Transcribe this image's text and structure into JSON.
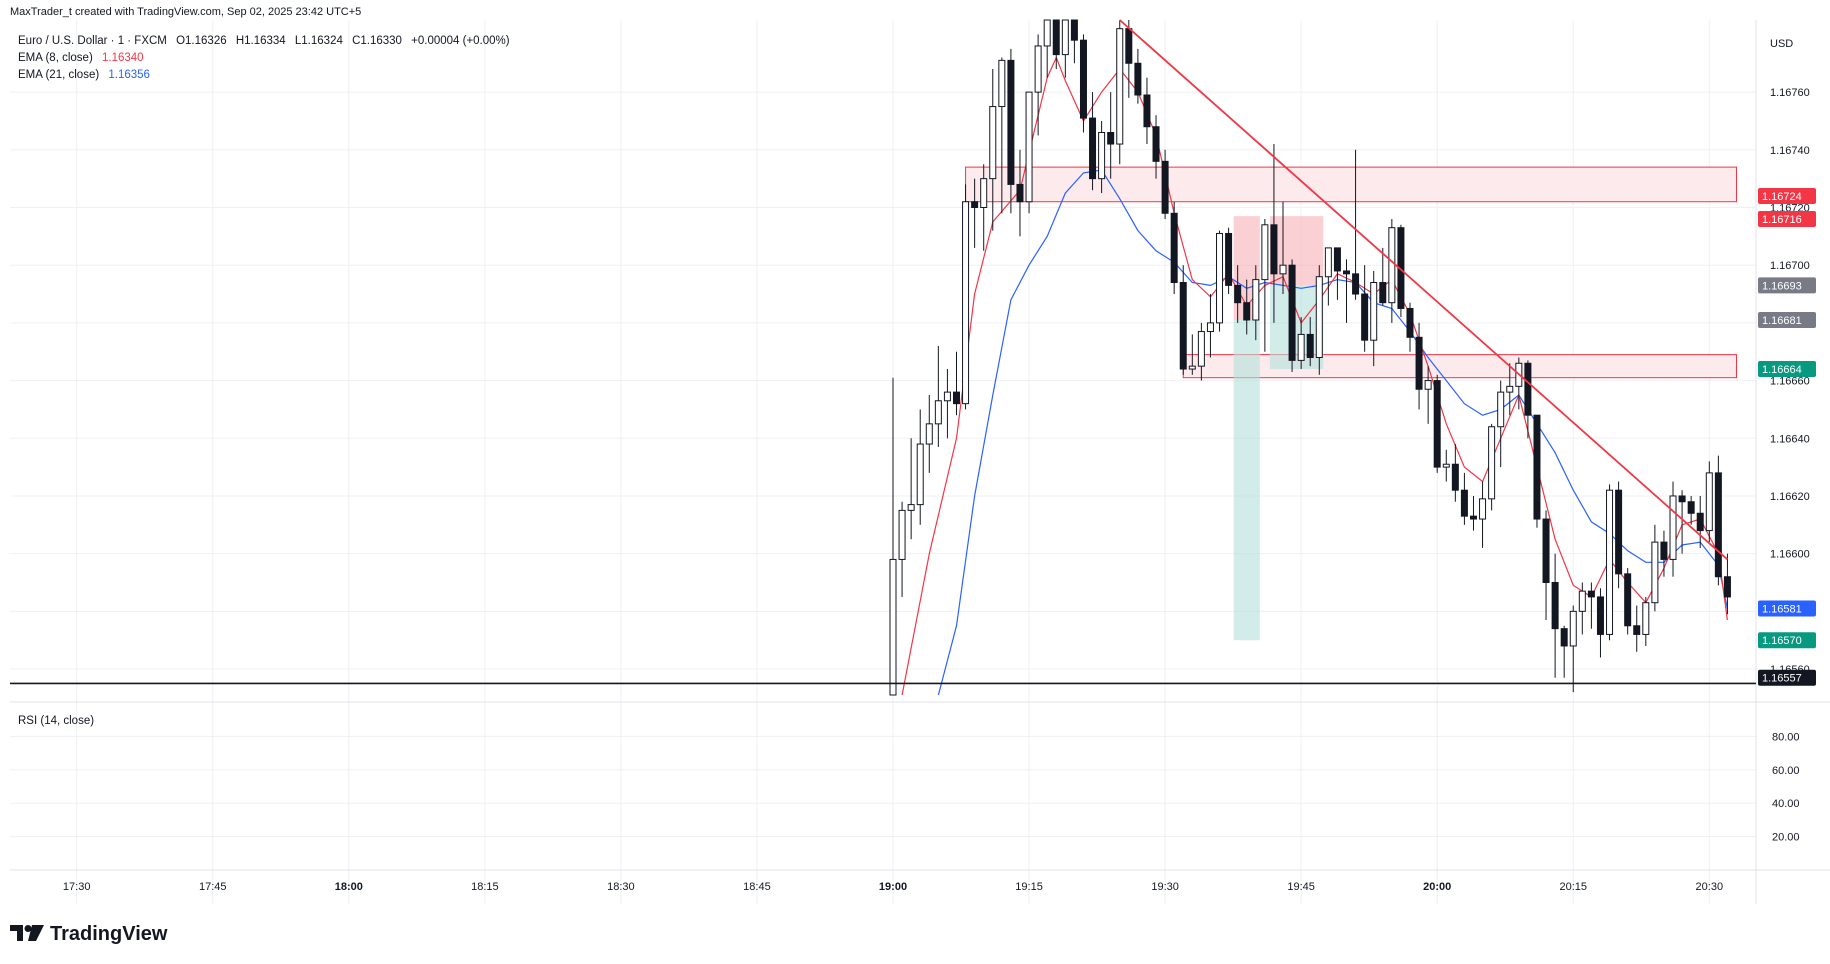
{
  "header": {
    "attribution": "MaxTrader_t created with TradingView.com, Sep 02, 2025 23:42 UTC+5"
  },
  "legend": {
    "symbol": "Euro / U.S. Dollar · 1 · FXCM",
    "ohlc": {
      "open": "O1.16326",
      "high": "H1.16334",
      "low": "L1.16324",
      "close": "C1.16330",
      "change": "+0.00004 (+0.00%)"
    },
    "ema8_label": "EMA (8, close)",
    "ema8_value": "1.16340",
    "ema21_label": "EMA (21, close)",
    "ema21_value": "1.16356"
  },
  "rsi": {
    "label": "RSI (14, close)",
    "ticks": [
      "80.00",
      "60.00",
      "40.00",
      "20.00"
    ]
  },
  "price_axis": {
    "currency": "USD",
    "ticks": [
      "1.16760",
      "1.16740",
      "1.16720",
      "1.16700",
      "1.16680",
      "1.16660",
      "1.16640",
      "1.16620",
      "1.16600",
      "1.16580",
      "1.16560"
    ],
    "badges": [
      {
        "text": "1.16724",
        "color": "#f23645"
      },
      {
        "text": "1.16716",
        "color": "#f23645"
      },
      {
        "text": "1.16693",
        "color": "#787b86"
      },
      {
        "text": "1.16681",
        "color": "#787b86"
      },
      {
        "text": "1.16664",
        "color": "#089981"
      },
      {
        "text": "1.16581",
        "color": "#2962ff"
      },
      {
        "text": "1.16570",
        "color": "#089981"
      },
      {
        "text": "1.16557",
        "color": "#131722"
      }
    ]
  },
  "time_axis": {
    "ticks": [
      "17:30",
      "17:45",
      "18:00",
      "18:15",
      "18:30",
      "18:45",
      "19:00",
      "19:15",
      "19:30",
      "19:45",
      "20:00",
      "20:15",
      "20:30"
    ],
    "bold": [
      "18:00",
      "19:00",
      "20:00"
    ]
  },
  "brand": {
    "name": "TradingView"
  },
  "colors": {
    "ema8": "#f23645",
    "ema21": "#2962ff",
    "zone_fill": "#fde8ea",
    "zone_stroke": "#f23645",
    "trendline": "#f23645",
    "long_target": "#b2dfdb",
    "short_stop": "#f7a9b1"
  },
  "chart_data": {
    "type": "candlestick",
    "instrument": "EURUSD",
    "timeframe": "1",
    "ylim": [
      1.16551,
      1.16785
    ],
    "xlim_minutes": [
      1038,
      1232
    ],
    "candles": [
      {
        "t": 1140,
        "o": 1.1654,
        "h": 1.16661,
        "l": 1.1654,
        "c": 1.16598
      },
      {
        "t": 1141,
        "o": 1.16598,
        "h": 1.16618,
        "l": 1.16585,
        "c": 1.16615
      },
      {
        "t": 1142,
        "o": 1.16615,
        "h": 1.1664,
        "l": 1.16605,
        "c": 1.16617
      },
      {
        "t": 1143,
        "o": 1.16617,
        "h": 1.1665,
        "l": 1.1661,
        "c": 1.16638
      },
      {
        "t": 1144,
        "o": 1.16638,
        "h": 1.16655,
        "l": 1.16628,
        "c": 1.16645
      },
      {
        "t": 1145,
        "o": 1.16645,
        "h": 1.16672,
        "l": 1.16637,
        "c": 1.16653
      },
      {
        "t": 1146,
        "o": 1.16653,
        "h": 1.16664,
        "l": 1.1664,
        "c": 1.16656
      },
      {
        "t": 1147,
        "o": 1.16656,
        "h": 1.1667,
        "l": 1.16648,
        "c": 1.16652
      },
      {
        "t": 1148,
        "o": 1.16652,
        "h": 1.16728,
        "l": 1.1665,
        "c": 1.16722
      },
      {
        "t": 1149,
        "o": 1.16722,
        "h": 1.1673,
        "l": 1.16706,
        "c": 1.1672
      },
      {
        "t": 1150,
        "o": 1.1672,
        "h": 1.16735,
        "l": 1.16705,
        "c": 1.1673
      },
      {
        "t": 1151,
        "o": 1.1673,
        "h": 1.16768,
        "l": 1.16712,
        "c": 1.16755
      },
      {
        "t": 1152,
        "o": 1.16755,
        "h": 1.16772,
        "l": 1.16718,
        "c": 1.16771
      },
      {
        "t": 1153,
        "o": 1.16771,
        "h": 1.16775,
        "l": 1.16718,
        "c": 1.16728
      },
      {
        "t": 1154,
        "o": 1.16728,
        "h": 1.1674,
        "l": 1.1671,
        "c": 1.16722
      },
      {
        "t": 1155,
        "o": 1.16722,
        "h": 1.1676,
        "l": 1.16718,
        "c": 1.1676
      },
      {
        "t": 1156,
        "o": 1.1676,
        "h": 1.1678,
        "l": 1.16745,
        "c": 1.16776
      },
      {
        "t": 1157,
        "o": 1.16776,
        "h": 1.16785,
        "l": 1.16765,
        "c": 1.16785
      },
      {
        "t": 1158,
        "o": 1.16785,
        "h": 1.16785,
        "l": 1.16768,
        "c": 1.16773
      },
      {
        "t": 1159,
        "o": 1.16773,
        "h": 1.16785,
        "l": 1.16765,
        "c": 1.16785
      },
      {
        "t": 1160,
        "o": 1.16785,
        "h": 1.16785,
        "l": 1.1677,
        "c": 1.16778
      },
      {
        "t": 1161,
        "o": 1.16778,
        "h": 1.1678,
        "l": 1.16746,
        "c": 1.16751
      },
      {
        "t": 1162,
        "o": 1.16751,
        "h": 1.1676,
        "l": 1.16726,
        "c": 1.1673
      },
      {
        "t": 1163,
        "o": 1.1673,
        "h": 1.1675,
        "l": 1.16725,
        "c": 1.16746
      },
      {
        "t": 1164,
        "o": 1.16746,
        "h": 1.1676,
        "l": 1.1673,
        "c": 1.16742
      },
      {
        "t": 1165,
        "o": 1.16742,
        "h": 1.16785,
        "l": 1.16735,
        "c": 1.16782
      },
      {
        "t": 1166,
        "o": 1.16782,
        "h": 1.1679,
        "l": 1.16758,
        "c": 1.1677
      },
      {
        "t": 1167,
        "o": 1.1677,
        "h": 1.16775,
        "l": 1.16756,
        "c": 1.16759
      },
      {
        "t": 1168,
        "o": 1.16759,
        "h": 1.16765,
        "l": 1.16742,
        "c": 1.16748
      },
      {
        "t": 1169,
        "o": 1.16748,
        "h": 1.16752,
        "l": 1.1673,
        "c": 1.16736
      },
      {
        "t": 1170,
        "o": 1.16736,
        "h": 1.1674,
        "l": 1.16716,
        "c": 1.16718
      },
      {
        "t": 1171,
        "o": 1.16718,
        "h": 1.16722,
        "l": 1.1669,
        "c": 1.16694
      },
      {
        "t": 1172,
        "o": 1.16694,
        "h": 1.167,
        "l": 1.16662,
        "c": 1.16664
      },
      {
        "t": 1173,
        "o": 1.16664,
        "h": 1.16676,
        "l": 1.16662,
        "c": 1.16665
      },
      {
        "t": 1174,
        "o": 1.16665,
        "h": 1.1668,
        "l": 1.1666,
        "c": 1.16677
      },
      {
        "t": 1175,
        "o": 1.16677,
        "h": 1.1669,
        "l": 1.16668,
        "c": 1.1668
      },
      {
        "t": 1176,
        "o": 1.1668,
        "h": 1.16712,
        "l": 1.16677,
        "c": 1.16711
      },
      {
        "t": 1177,
        "o": 1.16711,
        "h": 1.16713,
        "l": 1.1669,
        "c": 1.16693
      },
      {
        "t": 1178,
        "o": 1.16693,
        "h": 1.167,
        "l": 1.1668,
        "c": 1.16687
      },
      {
        "t": 1179,
        "o": 1.16687,
        "h": 1.16695,
        "l": 1.16676,
        "c": 1.16681
      },
      {
        "t": 1180,
        "o": 1.16681,
        "h": 1.167,
        "l": 1.16674,
        "c": 1.16695
      },
      {
        "t": 1181,
        "o": 1.16695,
        "h": 1.16716,
        "l": 1.1667,
        "c": 1.16714
      },
      {
        "t": 1182,
        "o": 1.16714,
        "h": 1.16742,
        "l": 1.1668,
        "c": 1.16697
      },
      {
        "t": 1183,
        "o": 1.16697,
        "h": 1.16722,
        "l": 1.1669,
        "c": 1.167
      },
      {
        "t": 1184,
        "o": 1.167,
        "h": 1.16702,
        "l": 1.16663,
        "c": 1.16667
      },
      {
        "t": 1185,
        "o": 1.16667,
        "h": 1.16682,
        "l": 1.16664,
        "c": 1.16676
      },
      {
        "t": 1186,
        "o": 1.16676,
        "h": 1.16682,
        "l": 1.16665,
        "c": 1.16668
      },
      {
        "t": 1187,
        "o": 1.16668,
        "h": 1.167,
        "l": 1.16662,
        "c": 1.16696
      },
      {
        "t": 1188,
        "o": 1.16696,
        "h": 1.16706,
        "l": 1.16686,
        "c": 1.16706
      },
      {
        "t": 1189,
        "o": 1.16706,
        "h": 1.16706,
        "l": 1.16688,
        "c": 1.16698
      },
      {
        "t": 1190,
        "o": 1.16698,
        "h": 1.16702,
        "l": 1.1668,
        "c": 1.16697
      },
      {
        "t": 1191,
        "o": 1.16697,
        "h": 1.1674,
        "l": 1.16688,
        "c": 1.1669
      },
      {
        "t": 1192,
        "o": 1.1669,
        "h": 1.167,
        "l": 1.1667,
        "c": 1.16674
      },
      {
        "t": 1193,
        "o": 1.16674,
        "h": 1.16698,
        "l": 1.16665,
        "c": 1.16694
      },
      {
        "t": 1194,
        "o": 1.16694,
        "h": 1.16706,
        "l": 1.16686,
        "c": 1.16687
      },
      {
        "t": 1195,
        "o": 1.16687,
        "h": 1.16716,
        "l": 1.1668,
        "c": 1.16713
      },
      {
        "t": 1196,
        "o": 1.16713,
        "h": 1.16714,
        "l": 1.16682,
        "c": 1.16685
      },
      {
        "t": 1197,
        "o": 1.16685,
        "h": 1.16687,
        "l": 1.1667,
        "c": 1.16675
      },
      {
        "t": 1198,
        "o": 1.16675,
        "h": 1.1668,
        "l": 1.1665,
        "c": 1.16657
      },
      {
        "t": 1199,
        "o": 1.16657,
        "h": 1.16665,
        "l": 1.16645,
        "c": 1.1666
      },
      {
        "t": 1200,
        "o": 1.1666,
        "h": 1.16662,
        "l": 1.16628,
        "c": 1.1663
      },
      {
        "t": 1201,
        "o": 1.1663,
        "h": 1.16636,
        "l": 1.16625,
        "c": 1.16631
      },
      {
        "t": 1202,
        "o": 1.16631,
        "h": 1.16638,
        "l": 1.16618,
        "c": 1.16622
      },
      {
        "t": 1203,
        "o": 1.16622,
        "h": 1.16628,
        "l": 1.1661,
        "c": 1.16613
      },
      {
        "t": 1204,
        "o": 1.16613,
        "h": 1.1662,
        "l": 1.16608,
        "c": 1.16612
      },
      {
        "t": 1205,
        "o": 1.16612,
        "h": 1.16625,
        "l": 1.16602,
        "c": 1.16619
      },
      {
        "t": 1206,
        "o": 1.16619,
        "h": 1.16645,
        "l": 1.16615,
        "c": 1.16644
      },
      {
        "t": 1207,
        "o": 1.16644,
        "h": 1.1666,
        "l": 1.1663,
        "c": 1.16656
      },
      {
        "t": 1208,
        "o": 1.16656,
        "h": 1.16666,
        "l": 1.16648,
        "c": 1.16658
      },
      {
        "t": 1209,
        "o": 1.16658,
        "h": 1.16668,
        "l": 1.1665,
        "c": 1.16666
      },
      {
        "t": 1210,
        "o": 1.16666,
        "h": 1.16667,
        "l": 1.1664,
        "c": 1.16648
      },
      {
        "t": 1211,
        "o": 1.16648,
        "h": 1.16648,
        "l": 1.16609,
        "c": 1.16612
      },
      {
        "t": 1212,
        "o": 1.16612,
        "h": 1.16615,
        "l": 1.16577,
        "c": 1.1659
      },
      {
        "t": 1213,
        "o": 1.1659,
        "h": 1.166,
        "l": 1.16557,
        "c": 1.16574
      },
      {
        "t": 1214,
        "o": 1.16574,
        "h": 1.16575,
        "l": 1.16557,
        "c": 1.16568
      },
      {
        "t": 1215,
        "o": 1.16568,
        "h": 1.16582,
        "l": 1.16552,
        "c": 1.1658
      },
      {
        "t": 1216,
        "o": 1.1658,
        "h": 1.1659,
        "l": 1.16572,
        "c": 1.16587
      },
      {
        "t": 1217,
        "o": 1.16587,
        "h": 1.1659,
        "l": 1.16574,
        "c": 1.16585
      },
      {
        "t": 1218,
        "o": 1.16585,
        "h": 1.16588,
        "l": 1.16564,
        "c": 1.16572
      },
      {
        "t": 1219,
        "o": 1.16572,
        "h": 1.16624,
        "l": 1.1657,
        "c": 1.16622
      },
      {
        "t": 1220,
        "o": 1.16622,
        "h": 1.16625,
        "l": 1.16588,
        "c": 1.16593
      },
      {
        "t": 1221,
        "o": 1.16593,
        "h": 1.16595,
        "l": 1.16572,
        "c": 1.16575
      },
      {
        "t": 1222,
        "o": 1.16575,
        "h": 1.16582,
        "l": 1.16566,
        "c": 1.16572
      },
      {
        "t": 1223,
        "o": 1.16572,
        "h": 1.16585,
        "l": 1.16568,
        "c": 1.16583
      },
      {
        "t": 1224,
        "o": 1.16583,
        "h": 1.1661,
        "l": 1.1658,
        "c": 1.16604
      },
      {
        "t": 1225,
        "o": 1.16604,
        "h": 1.16608,
        "l": 1.16592,
        "c": 1.16598
      },
      {
        "t": 1226,
        "o": 1.16598,
        "h": 1.16625,
        "l": 1.16592,
        "c": 1.1662
      },
      {
        "t": 1227,
        "o": 1.1662,
        "h": 1.16622,
        "l": 1.166,
        "c": 1.16618
      },
      {
        "t": 1228,
        "o": 1.16618,
        "h": 1.1662,
        "l": 1.1661,
        "c": 1.16614
      },
      {
        "t": 1229,
        "o": 1.16614,
        "h": 1.1662,
        "l": 1.16602,
        "c": 1.16608
      },
      {
        "t": 1230,
        "o": 1.16608,
        "h": 1.16632,
        "l": 1.16604,
        "c": 1.16628
      },
      {
        "t": 1231,
        "o": 1.16628,
        "h": 1.16634,
        "l": 1.16589,
        "c": 1.16592
      },
      {
        "t": 1232,
        "o": 1.16592,
        "h": 1.166,
        "l": 1.16579,
        "c": 1.16585
      }
    ],
    "ema8": [
      [
        1141,
        1.1654
      ],
      [
        1144,
        1.166
      ],
      [
        1147,
        1.1664
      ],
      [
        1149,
        1.1669
      ],
      [
        1151,
        1.16715
      ],
      [
        1154,
        1.16726
      ],
      [
        1157,
        1.16765
      ],
      [
        1158,
        1.16772
      ],
      [
        1159,
        1.16764
      ],
      [
        1161,
        1.1675
      ],
      [
        1163,
        1.1676
      ],
      [
        1165,
        1.16768
      ],
      [
        1167,
        1.1676
      ],
      [
        1169,
        1.16745
      ],
      [
        1171,
        1.16718
      ],
      [
        1173,
        1.16695
      ],
      [
        1175,
        1.16689
      ],
      [
        1177,
        1.16697
      ],
      [
        1179,
        1.16686
      ],
      [
        1181,
        1.16693
      ],
      [
        1183,
        1.16696
      ],
      [
        1185,
        1.1668
      ],
      [
        1187,
        1.16688
      ],
      [
        1189,
        1.16697
      ],
      [
        1191,
        1.16694
      ],
      [
        1193,
        1.1669
      ],
      [
        1195,
        1.16695
      ],
      [
        1197,
        1.16683
      ],
      [
        1199,
        1.16665
      ],
      [
        1201,
        1.16645
      ],
      [
        1203,
        1.1663
      ],
      [
        1205,
        1.16625
      ],
      [
        1207,
        1.1664
      ],
      [
        1209,
        1.16655
      ],
      [
        1211,
        1.1663
      ],
      [
        1213,
        1.16605
      ],
      [
        1215,
        1.16589
      ],
      [
        1217,
        1.16585
      ],
      [
        1219,
        1.16598
      ],
      [
        1221,
        1.1659
      ],
      [
        1223,
        1.16583
      ],
      [
        1225,
        1.16595
      ],
      [
        1227,
        1.1661
      ],
      [
        1229,
        1.16612
      ],
      [
        1231,
        1.166
      ],
      [
        1232,
        1.16577
      ]
    ],
    "ema21": [
      [
        1145,
        1.1654
      ],
      [
        1147,
        1.16575
      ],
      [
        1149,
        1.1662
      ],
      [
        1151,
        1.16655
      ],
      [
        1153,
        1.16688
      ],
      [
        1155,
        1.167
      ],
      [
        1157,
        1.1671
      ],
      [
        1159,
        1.16725
      ],
      [
        1161,
        1.16732
      ],
      [
        1163,
        1.16733
      ],
      [
        1165,
        1.16723
      ],
      [
        1167,
        1.16712
      ],
      [
        1169,
        1.16705
      ],
      [
        1171,
        1.16701
      ],
      [
        1173,
        1.16694
      ],
      [
        1175,
        1.16693
      ],
      [
        1177,
        1.16696
      ],
      [
        1179,
        1.16692
      ],
      [
        1181,
        1.16694
      ],
      [
        1183,
        1.16693
      ],
      [
        1185,
        1.16692
      ],
      [
        1187,
        1.16693
      ],
      [
        1189,
        1.16695
      ],
      [
        1191,
        1.16694
      ],
      [
        1193,
        1.16687
      ],
      [
        1195,
        1.16685
      ],
      [
        1197,
        1.16677
      ],
      [
        1199,
        1.16668
      ],
      [
        1201,
        1.1666
      ],
      [
        1203,
        1.16652
      ],
      [
        1205,
        1.16648
      ],
      [
        1207,
        1.1665
      ],
      [
        1209,
        1.16655
      ],
      [
        1211,
        1.16645
      ],
      [
        1213,
        1.16635
      ],
      [
        1215,
        1.16622
      ],
      [
        1217,
        1.16611
      ],
      [
        1219,
        1.16607
      ],
      [
        1221,
        1.16601
      ],
      [
        1223,
        1.16597
      ],
      [
        1225,
        1.16597
      ],
      [
        1227,
        1.16603
      ],
      [
        1229,
        1.16604
      ],
      [
        1231,
        1.16596
      ],
      [
        1232,
        1.16581
      ]
    ],
    "zones": [
      {
        "from": 1148,
        "to": 1232,
        "top": 1.16734,
        "bottom": 1.16722
      },
      {
        "from": 1172,
        "to": 1232,
        "top": 1.16669,
        "bottom": 1.16661
      }
    ],
    "trendline": {
      "x1": 1165,
      "y1": 1.16785,
      "x2": 1232,
      "y2": 1.16598
    },
    "horizontal_line": 1.16555,
    "position_short": {
      "from": 1178,
      "to": 1180,
      "entry": 1.16681,
      "stop": 1.16717,
      "target": 1.1657
    },
    "position_short2": {
      "from": 1182,
      "to": 1187,
      "entry": 1.16693,
      "stop": 1.16717,
      "target": 1.16664
    }
  }
}
